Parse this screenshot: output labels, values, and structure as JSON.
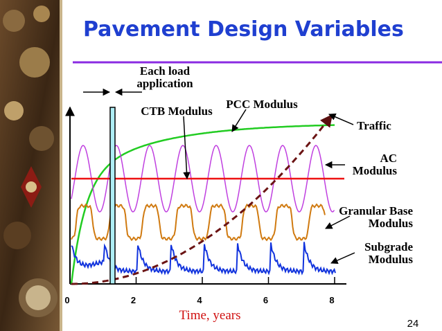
{
  "slide_title": "Pavement Design Variables",
  "slide_number": "24",
  "chart_data": {
    "type": "schematic",
    "xlabel": "Time, years",
    "xlim": [
      0,
      8
    ],
    "xticks": [
      0,
      2,
      4,
      6,
      8
    ],
    "annotations": [
      "Each load",
      "application",
      "CTB Modulus",
      "PCC Modulus",
      "Traffic",
      "AC",
      "Modulus",
      "Granular Base",
      "Modulus",
      "Subgrade",
      "Modulus"
    ]
  }
}
